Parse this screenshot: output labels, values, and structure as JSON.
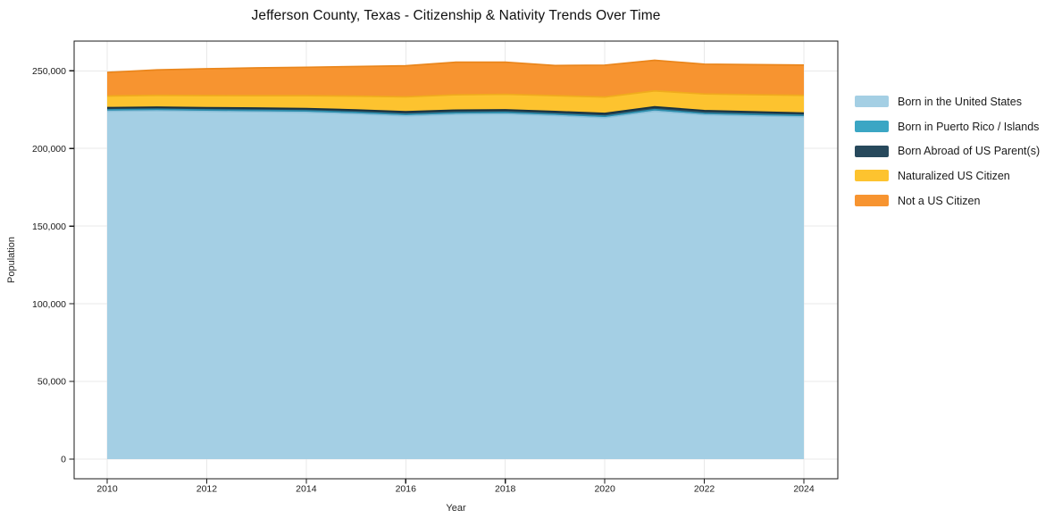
{
  "chart_data": {
    "type": "area",
    "stacked": true,
    "title": "Jefferson County, Texas - Citizenship & Nativity Trends Over Time",
    "xlabel": "Year",
    "ylabel": "Population",
    "x": [
      2010,
      2011,
      2012,
      2013,
      2014,
      2015,
      2016,
      2017,
      2018,
      2019,
      2020,
      2021,
      2022,
      2023,
      2024
    ],
    "xticks": [
      2010,
      2012,
      2014,
      2016,
      2018,
      2020,
      2022,
      2024
    ],
    "yticks": [
      0,
      50000,
      100000,
      150000,
      200000,
      250000
    ],
    "ylim": [
      0,
      269000
    ],
    "grid": true,
    "legend_position": "right",
    "series": [
      {
        "name": "Born in the United States",
        "color": "#a4cfe4",
        "edge_color": "#8cc0da",
        "values": [
          224000,
          224300,
          223900,
          223600,
          223300,
          222300,
          221000,
          222000,
          222300,
          221200,
          219800,
          224000,
          221700,
          221000,
          220400
        ]
      },
      {
        "name": "Born in Puerto Rico / Islands",
        "color": "#3ba6c4",
        "edge_color": "#2d8dab",
        "values": [
          900,
          900,
          900,
          900,
          900,
          900,
          950,
          950,
          900,
          900,
          950,
          1000,
          900,
          900,
          900
        ]
      },
      {
        "name": "Born Abroad of US Parent(s)",
        "color": "#27495c",
        "edge_color": "#18313f",
        "values": [
          1400,
          1400,
          1450,
          1500,
          1500,
          1600,
          1700,
          1700,
          1700,
          1700,
          1800,
          1800,
          1800,
          1700,
          1500
        ]
      },
      {
        "name": "Naturalized US Citizen",
        "color": "#fdc32f",
        "edge_color": "#f0ab1d",
        "values": [
          7500,
          7600,
          7800,
          8000,
          8300,
          8900,
          9600,
          9900,
          10000,
          10200,
          10600,
          10300,
          10700,
          11000,
          11400
        ]
      },
      {
        "name": "Not a US Citizen",
        "color": "#f79430",
        "edge_color": "#ea861c",
        "values": [
          15200,
          16400,
          17300,
          17900,
          18300,
          19100,
          20000,
          21000,
          20700,
          19400,
          20500,
          19700,
          19200,
          19400,
          19500
        ]
      }
    ]
  }
}
